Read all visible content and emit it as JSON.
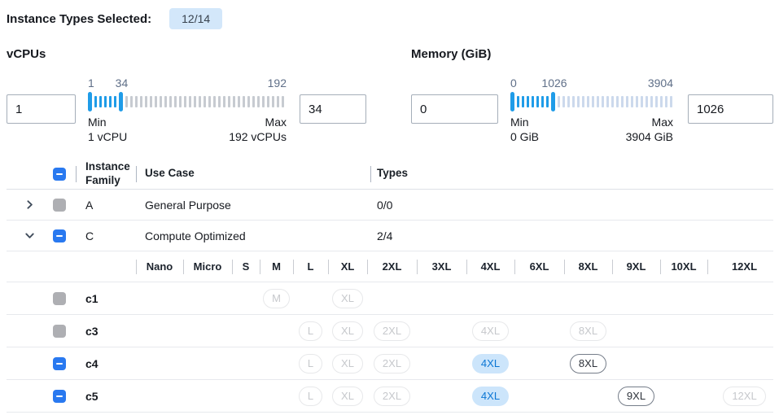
{
  "header": {
    "label": "Instance Types Selected:",
    "badge": "12/14"
  },
  "filters": {
    "vcpus": {
      "label": "vCPUs",
      "min_input": "1",
      "max_input": "34",
      "scale_start": "1",
      "scale_current": "34",
      "scale_end": "192",
      "min_label": "Min",
      "min_value": "1 vCPU",
      "max_label": "Max",
      "max_value": "192 vCPUs",
      "active_ticks": 5,
      "inactive_ticks": 33,
      "inactive_tick_color": "#c7cbd1"
    },
    "memory": {
      "label": "Memory (GiB)",
      "min_input": "0",
      "max_input": "1026",
      "scale_start": "0",
      "scale_current": "1026",
      "scale_end": "3904",
      "min_label": "Min",
      "min_value": "0 GiB",
      "max_label": "Max",
      "max_value": "3904 GiB",
      "active_ticks": 7,
      "inactive_ticks": 24,
      "inactive_tick_color": "#ccd9ec"
    }
  },
  "table": {
    "columns": {
      "family": "Instance Family",
      "use_case": "Use Case",
      "types": "Types"
    },
    "family_rows": [
      {
        "name": "A",
        "use_case": "General Purpose",
        "types": "0/0",
        "expanded": false,
        "checkbox": "disabled"
      },
      {
        "name": "C",
        "use_case": "Compute Optimized",
        "types": "2/4",
        "expanded": true,
        "checkbox": "indeterminate"
      }
    ],
    "sizes": [
      "Nano",
      "Micro",
      "S",
      "M",
      "L",
      "XL",
      "2XL",
      "3XL",
      "4XL",
      "6XL",
      "8XL",
      "9XL",
      "10XL",
      "12XL"
    ],
    "instance_rows": [
      {
        "name": "c1",
        "checkbox": "disabled",
        "pills": [
          {
            "size": "M",
            "state": "disabled"
          },
          {
            "size": "XL",
            "state": "disabled"
          }
        ]
      },
      {
        "name": "c3",
        "checkbox": "disabled",
        "pills": [
          {
            "size": "L",
            "state": "disabled"
          },
          {
            "size": "XL",
            "state": "disabled"
          },
          {
            "size": "2XL",
            "state": "disabled"
          },
          {
            "size": "4XL",
            "state": "disabled"
          },
          {
            "size": "8XL",
            "state": "disabled"
          }
        ]
      },
      {
        "name": "c4",
        "checkbox": "indeterminate",
        "pills": [
          {
            "size": "L",
            "state": "disabled"
          },
          {
            "size": "XL",
            "state": "disabled"
          },
          {
            "size": "2XL",
            "state": "disabled"
          },
          {
            "size": "4XL",
            "state": "selected"
          },
          {
            "size": "8XL",
            "state": "enabled"
          }
        ]
      },
      {
        "name": "c5",
        "checkbox": "indeterminate",
        "pills": [
          {
            "size": "L",
            "state": "disabled"
          },
          {
            "size": "XL",
            "state": "disabled"
          },
          {
            "size": "2XL",
            "state": "disabled"
          },
          {
            "size": "4XL",
            "state": "selected"
          },
          {
            "size": "9XL",
            "state": "enabled"
          },
          {
            "size": "12XL",
            "state": "disabled"
          }
        ]
      }
    ]
  },
  "colors": {
    "checkbox_blue": "#2979f0",
    "slider_blue": "#1f9ce8",
    "selected_pill_bg": "#cce5fb",
    "selected_pill_text": "#0b76d4",
    "badge_bg": "#d3e7fa"
  }
}
